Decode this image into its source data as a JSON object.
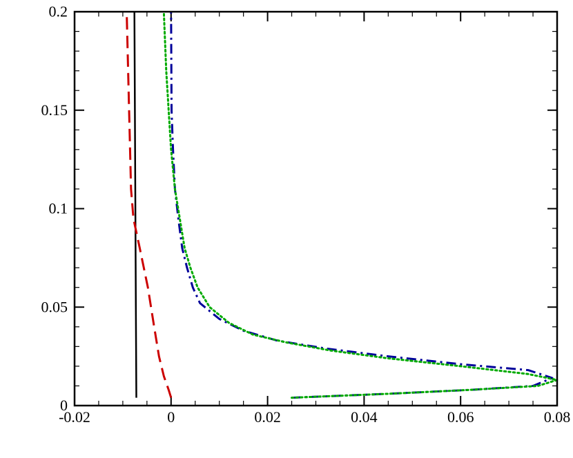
{
  "chart_data": {
    "type": "line",
    "title": "",
    "xlabel": "",
    "ylabel": "",
    "xlim": [
      -0.02,
      0.08
    ],
    "ylim": [
      0,
      0.2
    ],
    "x_ticks": [
      -0.02,
      0,
      0.02,
      0.04,
      0.06,
      0.08
    ],
    "x_tick_labels": [
      "-0.02",
      "0",
      "0.02",
      "0.04",
      "0.06",
      "0.08"
    ],
    "y_ticks": [
      0,
      0.05,
      0.1,
      0.15,
      0.2
    ],
    "y_tick_labels": [
      "0",
      "0.05",
      "0.1",
      "0.15",
      "0.2"
    ],
    "grid": false,
    "legend": "none",
    "series": [
      {
        "color": "#000000",
        "dash": "solid",
        "points": [
          [
            -0.0072,
            0.004
          ],
          [
            -0.0073,
            0.05
          ],
          [
            -0.0074,
            0.1
          ],
          [
            -0.0075,
            0.15
          ],
          [
            -0.0076,
            0.2
          ]
        ]
      },
      {
        "color": "#cc0000",
        "dash": "dashed",
        "points": [
          [
            0.0,
            0.004
          ],
          [
            -0.0005,
            0.008
          ],
          [
            -0.0015,
            0.015
          ],
          [
            -0.0025,
            0.025
          ],
          [
            -0.0035,
            0.04
          ],
          [
            -0.0048,
            0.06
          ],
          [
            -0.0065,
            0.08
          ],
          [
            -0.0078,
            0.095
          ],
          [
            -0.0083,
            0.11
          ],
          [
            -0.0085,
            0.13
          ],
          [
            -0.0087,
            0.15
          ],
          [
            -0.0089,
            0.17
          ],
          [
            -0.0092,
            0.2
          ]
        ]
      },
      {
        "color": "#00009a",
        "dash": "dashdot",
        "points": [
          [
            0.025,
            0.004
          ],
          [
            0.045,
            0.006
          ],
          [
            0.062,
            0.008
          ],
          [
            0.075,
            0.01
          ],
          [
            0.079,
            0.014
          ],
          [
            0.074,
            0.018
          ],
          [
            0.06,
            0.021
          ],
          [
            0.045,
            0.025
          ],
          [
            0.032,
            0.029
          ],
          [
            0.022,
            0.033
          ],
          [
            0.015,
            0.038
          ],
          [
            0.01,
            0.044
          ],
          [
            0.006,
            0.052
          ],
          [
            0.0045,
            0.06
          ],
          [
            0.0033,
            0.07
          ],
          [
            0.0023,
            0.08
          ],
          [
            0.0015,
            0.095
          ],
          [
            0.0008,
            0.11
          ],
          [
            0.0004,
            0.13
          ],
          [
            0.0001,
            0.15
          ],
          [
            0.0,
            0.2
          ]
        ]
      },
      {
        "color": "#00aa00",
        "dash": "dotted",
        "points": [
          [
            0.025,
            0.004
          ],
          [
            0.045,
            0.006
          ],
          [
            0.062,
            0.008
          ],
          [
            0.076,
            0.01
          ],
          [
            0.08,
            0.013
          ],
          [
            0.074,
            0.016
          ],
          [
            0.06,
            0.02
          ],
          [
            0.045,
            0.024
          ],
          [
            0.033,
            0.028
          ],
          [
            0.024,
            0.032
          ],
          [
            0.017,
            0.036
          ],
          [
            0.012,
            0.042
          ],
          [
            0.008,
            0.05
          ],
          [
            0.0055,
            0.06
          ],
          [
            0.004,
            0.07
          ],
          [
            0.0028,
            0.08
          ],
          [
            0.0018,
            0.095
          ],
          [
            0.0008,
            0.11
          ],
          [
            0.0,
            0.13
          ],
          [
            -0.0005,
            0.15
          ],
          [
            -0.001,
            0.17
          ],
          [
            -0.0015,
            0.2
          ]
        ]
      }
    ]
  }
}
